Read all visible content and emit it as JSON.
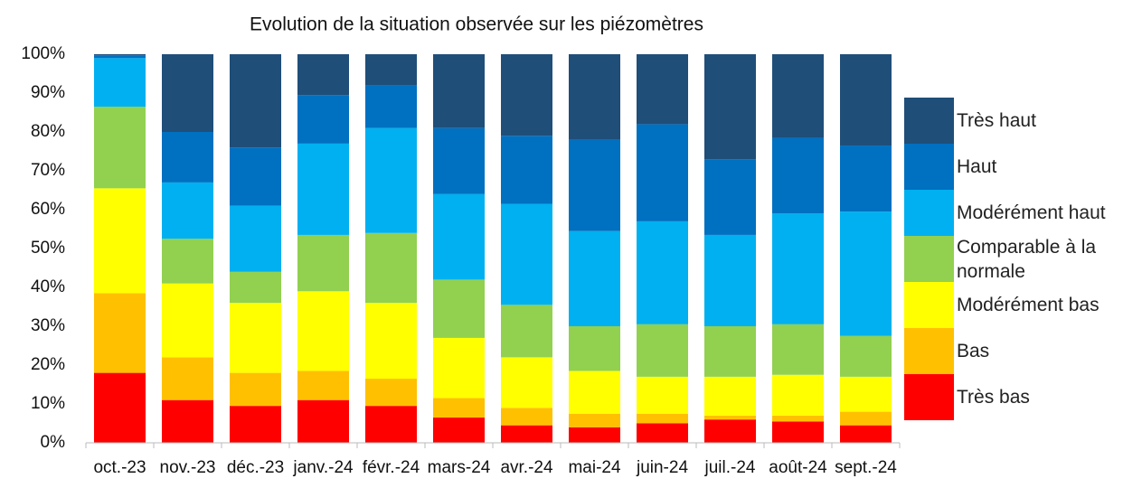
{
  "chart_data": {
    "type": "stacked_bar",
    "title": "Evolution de la situation observée sur les  piézomètres",
    "categories": [
      "oct.-23",
      "nov.-23",
      "déc.-23",
      "janv.-24",
      "févr.-24",
      "mars-24",
      "avr.-24",
      "mai-24",
      "juin-24",
      "juil.-24",
      "août-24",
      "sept.-24"
    ],
    "series": [
      {
        "name": "Très bas",
        "color": "#ff0000",
        "values": [
          18,
          11,
          9.5,
          11,
          9.5,
          6.5,
          4.5,
          4,
          5,
          6,
          5.5,
          4.5
        ]
      },
      {
        "name": "Bas",
        "color": "#ffc000",
        "values": [
          20.5,
          11,
          8.5,
          7.5,
          7,
          5,
          4.5,
          3.5,
          2.5,
          1,
          1.5,
          3.5
        ]
      },
      {
        "name": "Modérément bas",
        "color": "#ffff00",
        "values": [
          27,
          19,
          18,
          20.5,
          19.5,
          15.5,
          13,
          11,
          9.5,
          10,
          10.5,
          9
        ]
      },
      {
        "name": "Comparable à la normale",
        "color": "#92d050",
        "values": [
          21,
          11.5,
          8,
          14.5,
          18,
          15,
          13.5,
          11.5,
          13.5,
          13,
          13,
          10.5
        ]
      },
      {
        "name": "Modérément haut",
        "color": "#00b0f0",
        "values": [
          12.5,
          14.5,
          17,
          23.5,
          27,
          22,
          26,
          24.5,
          26.5,
          23.5,
          28.5,
          32
        ]
      },
      {
        "name": "Haut",
        "color": "#0070c0",
        "values": [
          0.7,
          13,
          15,
          12.5,
          11,
          17,
          17.5,
          23.5,
          25,
          19.5,
          19.5,
          17
        ]
      },
      {
        "name": "Très haut",
        "color": "#1f4e79",
        "values": [
          0.3,
          20,
          24,
          10.5,
          8,
          19,
          21,
          22,
          18,
          27,
          21.5,
          23.5
        ]
      }
    ],
    "ylim": [
      0,
      100
    ],
    "yticks": [
      {
        "value": 0,
        "label": "0%"
      },
      {
        "value": 10,
        "label": "10%"
      },
      {
        "value": 20,
        "label": "20%"
      },
      {
        "value": 30,
        "label": "30%"
      },
      {
        "value": 40,
        "label": "40%"
      },
      {
        "value": 50,
        "label": "50%"
      },
      {
        "value": 60,
        "label": "60%"
      },
      {
        "value": 70,
        "label": "70%"
      },
      {
        "value": 80,
        "label": "80%"
      },
      {
        "value": 90,
        "label": "90%"
      },
      {
        "value": 100,
        "label": "100%"
      }
    ],
    "grid": false,
    "legend": "right"
  }
}
